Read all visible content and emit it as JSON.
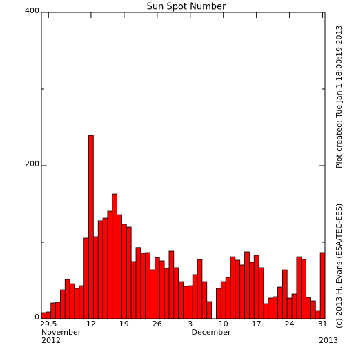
{
  "chart_data": {
    "type": "bar",
    "title": "Sun Spot Number",
    "categories": [
      null,
      "29.5",
      null,
      null,
      null,
      null,
      null,
      null,
      null,
      null,
      "12",
      null,
      null,
      null,
      null,
      null,
      null,
      "19",
      null,
      null,
      null,
      null,
      null,
      null,
      "26",
      null,
      null,
      null,
      null,
      null,
      null,
      "3",
      null,
      null,
      null,
      null,
      null,
      null,
      "10",
      null,
      null,
      null,
      null,
      null,
      null,
      "17",
      null,
      null,
      null,
      null,
      null,
      null,
      "24",
      null,
      null,
      null,
      null,
      null,
      null,
      "31"
    ],
    "values": [
      8.1,
      9,
      20.7,
      21.6,
      37.8,
      51.4,
      45.9,
      39.6,
      43.2,
      105.4,
      239.6,
      107.2,
      128,
      131.5,
      140.5,
      163,
      136,
      123.4,
      119.8,
      74.8,
      93,
      85.6,
      86.5,
      64,
      80,
      75.7,
      65.8,
      88.3,
      66.7,
      48.6,
      42.3,
      43.2,
      57.7,
      77.5,
      48.6,
      22.5,
      null,
      39.6,
      48.6,
      54,
      81,
      76.6,
      70.3,
      87.4,
      73.9,
      82.9,
      66.7,
      19.8,
      27,
      28.8,
      41.4,
      63.9,
      27,
      32.4,
      81,
      77.5,
      27.9,
      23.4,
      10.8,
      86.5
    ],
    "color": "#ff0000",
    "ylim": [
      0,
      400
    ],
    "yticks": [
      0,
      200,
      400
    ],
    "y_minor_ticks": [
      100,
      300
    ],
    "x_sublabels": [
      "November",
      "2012",
      "December",
      "2013"
    ],
    "credits": [
      "Plot created: Tue Jan  1 18:00:19 2013",
      "(c) 2013 H. Evans (ESA/TEC-EES)"
    ]
  }
}
